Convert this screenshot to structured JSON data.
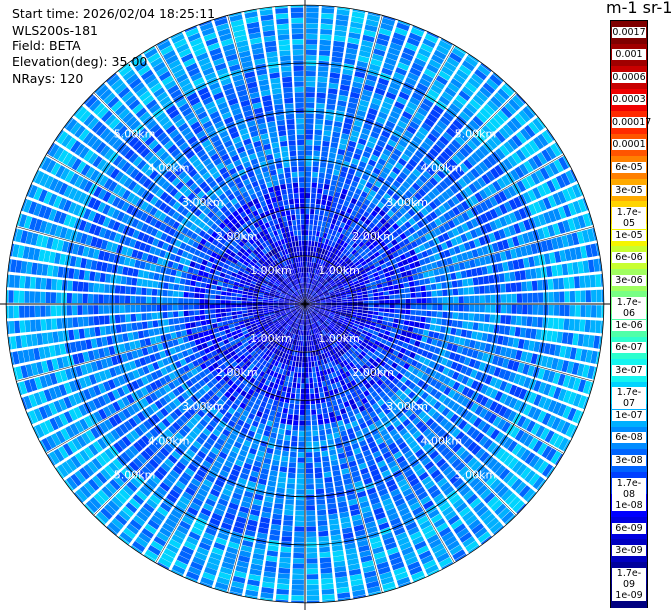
{
  "header": {
    "start_time": "Start time: 2026/02/04 18:25:11",
    "instrument": "WLS200s-181",
    "field": "Field: BETA",
    "elevation": "Elevation(deg): 35.00",
    "nrays": "NRays: 120"
  },
  "colorbar": {
    "unit_label": "m-1 sr-1",
    "ticks": [
      "0.0017",
      "0.001",
      "0.0006",
      "0.0003",
      "0.00017",
      "0.0001",
      "6e-05",
      "3e-05",
      "1.7e-05",
      "1e-05",
      "6e-06",
      "3e-06",
      "1.7e-06",
      "1e-06",
      "6e-07",
      "3e-07",
      "1.7e-07",
      "1e-07",
      "6e-08",
      "3e-08",
      "1.7e-08",
      "1e-08",
      "6e-09",
      "3e-09",
      "1.7e-09",
      "1e-09"
    ],
    "colors": [
      "#7f0000",
      "#a00000",
      "#c80000",
      "#f00000",
      "#ff2a00",
      "#ff5500",
      "#ff8000",
      "#ffaa00",
      "#ffd400",
      "#f5f500",
      "#c8ff30",
      "#a0ff60",
      "#78ff84",
      "#50ffa8",
      "#2dffce",
      "#15f5f0",
      "#00d4ff",
      "#00b0ff",
      "#008cff",
      "#0064ff",
      "#0040ff",
      "#0000ff",
      "#0000e0",
      "#0000c0",
      "#00009c",
      "#000080"
    ]
  },
  "chart_data": {
    "type": "heatmap",
    "projection": "polar PPI",
    "field": "BETA",
    "elevation_deg": 35.0,
    "n_rays": 120,
    "range_rings_km": [
      1,
      2,
      3,
      4,
      5
    ],
    "ring_labels": [
      "1.00km",
      "2.00km",
      "3.00km",
      "4.00km",
      "5.00km"
    ],
    "max_range_km": 6.2,
    "spoke_count": 24,
    "value_scale": "log",
    "value_range": [
      1e-09,
      0.0017
    ],
    "regions": [
      {
        "range_km": [
          0,
          1.3
        ],
        "typical_value": 6e-09
      },
      {
        "range_km": [
          1.3,
          2.5
        ],
        "typical_value": 1.5e-08
      },
      {
        "range_km": [
          2.5,
          5.0
        ],
        "typical_value": 4e-08
      },
      {
        "range_km": [
          5.0,
          6.2
        ],
        "typical_value": 8e-08
      }
    ]
  }
}
